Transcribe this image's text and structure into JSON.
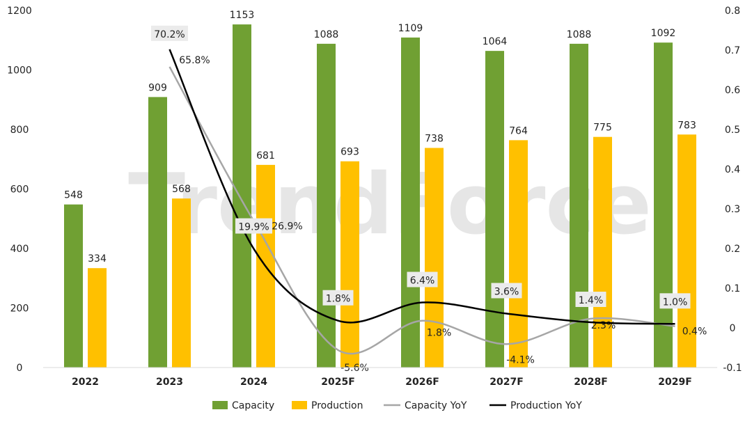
{
  "watermark": "TrendForce",
  "chart_data": {
    "type": "bar+line",
    "categories": [
      "2022",
      "2023",
      "2024",
      "2025F",
      "2026F",
      "2027F",
      "2028F",
      "2029F"
    ],
    "bar_series": [
      {
        "name": "Capacity",
        "color": "#70a033",
        "values": [
          548,
          909,
          1153,
          1088,
          1109,
          1064,
          1088,
          1092
        ]
      },
      {
        "name": "Production",
        "color": "#ffc000",
        "values": [
          334,
          568,
          681,
          693,
          738,
          764,
          775,
          783
        ]
      }
    ],
    "line_series": [
      {
        "name": "Capacity YoY",
        "color": "#a6a6a6",
        "values": [
          null,
          0.658,
          0.269,
          -0.056,
          0.018,
          -0.041,
          0.023,
          0.004
        ],
        "labels": [
          "",
          "65.8%",
          "26.9%",
          "-5.6%",
          "1.8%",
          "-4.1%",
          "2.3%",
          "0.4%"
        ]
      },
      {
        "name": "Production YoY",
        "color": "#000000",
        "values": [
          null,
          0.702,
          0.199,
          0.018,
          0.064,
          0.036,
          0.014,
          0.01
        ],
        "labels": [
          "",
          "70.2%",
          "19.9%",
          "1.8%",
          "6.4%",
          "3.6%",
          "1.4%",
          "1.0%"
        ]
      }
    ],
    "y_left": {
      "min": 0,
      "max": 1200,
      "ticks": [
        "0",
        "200",
        "400",
        "600",
        "800",
        "1000",
        "1200"
      ]
    },
    "y_right": {
      "min": -0.1,
      "max": 0.8,
      "ticks": [
        "-0.1",
        "0",
        "0.1",
        "0.2",
        "0.3",
        "0.4",
        "0.5",
        "0.6",
        "0.7",
        "0.8"
      ]
    },
    "grid": false,
    "legend_position": "bottom"
  }
}
